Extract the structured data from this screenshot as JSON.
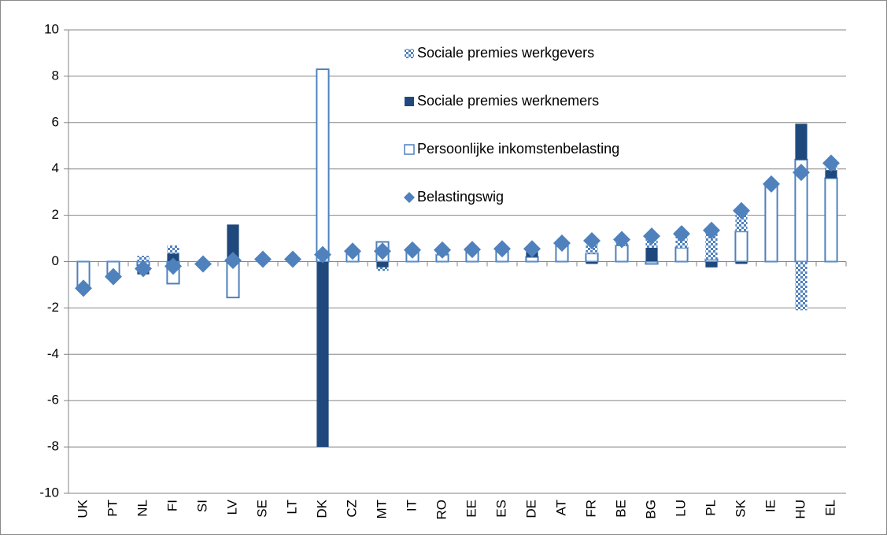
{
  "chart_data": {
    "type": "stacked-bar-diamond",
    "categories": [
      "UK",
      "PT",
      "NL",
      "FI",
      "SI",
      "LV",
      "SE",
      "LT",
      "DK",
      "CZ",
      "MT",
      "IT",
      "RO",
      "EE",
      "ES",
      "DE",
      "AT",
      "FR",
      "BE",
      "BG",
      "LU",
      "PL",
      "SK",
      "IE",
      "HU",
      "EL"
    ],
    "series": [
      {
        "name": "Sociale premies werkgevers",
        "color": "#4f81bd",
        "style": "checkered",
        "values": [
          0,
          0,
          0.25,
          0.35,
          0,
          0,
          0,
          0,
          0,
          0,
          -0.15,
          0,
          0.2,
          0,
          0,
          0,
          0,
          0.55,
          0.25,
          0.5,
          0.6,
          1.25,
          0.9,
          0,
          -2.1,
          0.3
        ]
      },
      {
        "name": "Sociale premies werknemers",
        "color": "#1f497d",
        "style": "solid",
        "values": [
          0,
          0,
          -0.4,
          0.35,
          0,
          1.6,
          0,
          0,
          -8,
          0,
          -0.25,
          0,
          0,
          0,
          0,
          0.25,
          0,
          -0.1,
          0,
          0.6,
          0,
          -0.25,
          -0.1,
          0,
          1.55,
          0.35
        ]
      },
      {
        "name": "Persoonlijke inkomstenbelasting",
        "color": "#4f81bd",
        "style": "outline",
        "values": [
          -1.1,
          -0.55,
          -0.15,
          -0.95,
          0,
          -1.55,
          0,
          0,
          8.3,
          0.45,
          0.85,
          0.5,
          0.3,
          0.5,
          0.5,
          0.2,
          0.8,
          0.35,
          0.7,
          -0.1,
          0.6,
          0.1,
          1.3,
          3.35,
          4.4,
          3.6
        ]
      },
      {
        "name": "Belastingswig",
        "color": "#4f81bd",
        "style": "diamond",
        "values": [
          -1.15,
          -0.65,
          -0.3,
          -0.2,
          -0.1,
          0.05,
          0.1,
          0.1,
          0.3,
          0.45,
          0.45,
          0.5,
          0.5,
          0.52,
          0.55,
          0.55,
          0.8,
          0.9,
          0.95,
          1.1,
          1.2,
          1.35,
          2.2,
          3.35,
          3.85,
          4.25
        ]
      }
    ],
    "stack_order": [
      2,
      1,
      0
    ],
    "ylim": [
      -10,
      10
    ],
    "yticks": [
      -10,
      -8,
      -6,
      -4,
      -2,
      0,
      2,
      4,
      6,
      8,
      10
    ],
    "grid": true
  }
}
